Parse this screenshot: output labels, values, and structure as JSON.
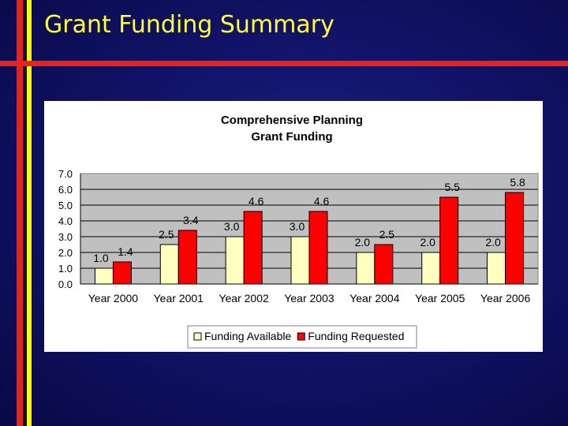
{
  "slide": {
    "title": "Grant Funding Summary"
  },
  "colors": {
    "background": "#121369",
    "title": "#ffff33",
    "accent_red": "#e8231c",
    "accent_yellow": "#ffff00",
    "plot_area": "#c0c0c0",
    "series_available": "#ffffc0",
    "series_requested": "#ff0000"
  },
  "chart_data": {
    "type": "bar",
    "title": "Comprehensive Planning",
    "subtitle": "Grant Funding",
    "categories": [
      "Year 2000",
      "Year 2001",
      "Year 2002",
      "Year 2003",
      "Year 2004",
      "Year 2005",
      "Year 2006"
    ],
    "series": [
      {
        "name": "Funding Available",
        "color": "#ffffc0",
        "values": [
          1.0,
          2.5,
          3.0,
          3.0,
          2.0,
          2.0,
          2.0
        ],
        "labels": [
          "1.0",
          "2.5",
          "3.0",
          "3.0",
          "2.0",
          "2.0",
          "2.0"
        ]
      },
      {
        "name": "Funding Requested",
        "color": "#ff0000",
        "values": [
          1.4,
          3.4,
          4.6,
          4.6,
          2.5,
          5.5,
          5.8
        ],
        "labels": [
          "1.4",
          "3.4",
          "4.6",
          "4.6",
          "2.5",
          "5.5",
          "5.8"
        ]
      }
    ],
    "ylim": [
      0,
      7
    ],
    "yticks": [
      "0.0",
      "1.0",
      "2.0",
      "3.0",
      "4.0",
      "5.0",
      "6.0",
      "7.0"
    ],
    "grid": true,
    "legend_position": "bottom"
  }
}
